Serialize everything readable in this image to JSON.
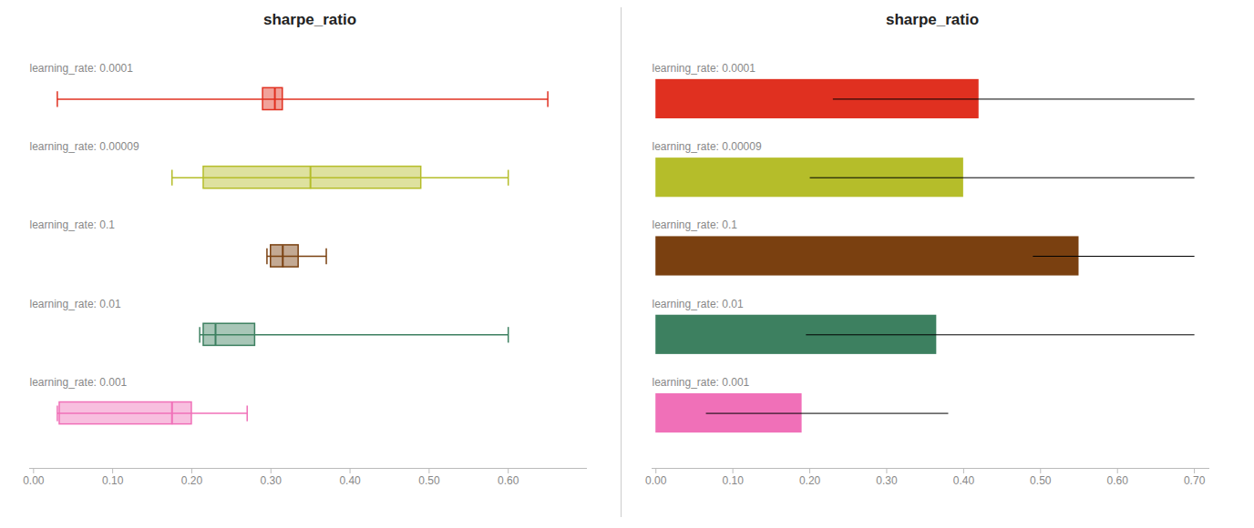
{
  "chart_data": [
    {
      "type": "box",
      "title": "sharpe_ratio",
      "orientation": "horizontal",
      "categories": [
        "learning_rate: 0.0001",
        "learning_rate: 0.00009",
        "learning_rate: 0.1",
        "learning_rate: 0.01",
        "learning_rate: 0.001"
      ],
      "colors": [
        "#e03020",
        "#b5bd2a",
        "#7a4010",
        "#3d8060",
        "#f070b8"
      ],
      "whisker_min": [
        0.03,
        0.175,
        0.295,
        0.21,
        0.03
      ],
      "q1": [
        0.29,
        0.215,
        0.3,
        0.215,
        0.033
      ],
      "median": [
        0.305,
        0.35,
        0.315,
        0.23,
        0.175
      ],
      "q3": [
        0.315,
        0.49,
        0.335,
        0.28,
        0.2
      ],
      "whisker_max": [
        0.65,
        0.6,
        0.37,
        0.6,
        0.27
      ],
      "xlim": [
        -0.005,
        0.7
      ],
      "xticks": [
        {
          "value": 0.0,
          "label": "0.00"
        },
        {
          "value": 0.1,
          "label": "0.10"
        },
        {
          "value": 0.2,
          "label": "0.20"
        },
        {
          "value": 0.3,
          "label": "0.30"
        },
        {
          "value": 0.4,
          "label": "0.40"
        },
        {
          "value": 0.5,
          "label": "0.50"
        },
        {
          "value": 0.6,
          "label": "0.60"
        }
      ]
    },
    {
      "type": "bar",
      "title": "sharpe_ratio",
      "orientation": "horizontal",
      "categories": [
        "learning_rate: 0.0001",
        "learning_rate: 0.00009",
        "learning_rate: 0.1",
        "learning_rate: 0.01",
        "learning_rate: 0.001"
      ],
      "colors": [
        "#e03020",
        "#b5bd2a",
        "#7a4010",
        "#3d8060",
        "#f070b8"
      ],
      "values": [
        0.42,
        0.4,
        0.55,
        0.365,
        0.19
      ],
      "line_start": [
        0.23,
        0.2,
        0.49,
        0.195,
        0.065
      ],
      "line_end": [
        0.7,
        0.7,
        0.7,
        0.7,
        0.38
      ],
      "xlim": [
        -0.005,
        0.72
      ],
      "xticks": [
        {
          "value": 0.0,
          "label": "0.00"
        },
        {
          "value": 0.1,
          "label": "0.10"
        },
        {
          "value": 0.2,
          "label": "0.20"
        },
        {
          "value": 0.3,
          "label": "0.30"
        },
        {
          "value": 0.4,
          "label": "0.40"
        },
        {
          "value": 0.5,
          "label": "0.50"
        },
        {
          "value": 0.6,
          "label": "0.60"
        },
        {
          "value": 0.7,
          "label": "0.70"
        }
      ]
    }
  ]
}
